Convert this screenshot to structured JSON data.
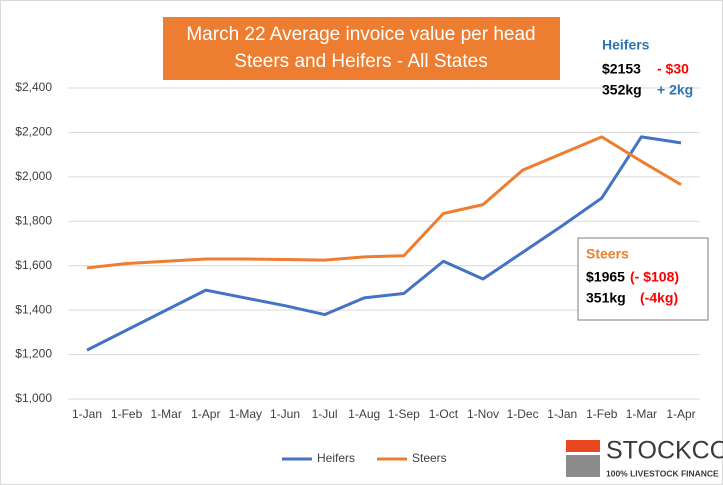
{
  "chart_data": {
    "type": "line",
    "title": "March 22 Average invoice value per head",
    "subtitle": "Steers and Heifers - All States",
    "categories": [
      "1-Jan",
      "1-Feb",
      "1-Mar",
      "1-Apr",
      "1-May",
      "1-Jun",
      "1-Jul",
      "1-Aug",
      "1-Sep",
      "1-Oct",
      "1-Nov",
      "1-Dec",
      "1-Jan",
      "1-Feb",
      "1-Mar",
      "1-Apr"
    ],
    "series": [
      {
        "name": "Heifers",
        "color": "#4472c4",
        "values": [
          1220,
          1310,
          1400,
          1490,
          1455,
          1420,
          1380,
          1455,
          1475,
          1620,
          1540,
          1660,
          1780,
          1905,
          2180,
          2153
        ]
      },
      {
        "name": "Steers",
        "color": "#ed7d31",
        "values": [
          1590,
          1610,
          1620,
          1630,
          1630,
          1628,
          1625,
          1640,
          1645,
          1835,
          1875,
          2030,
          2105,
          2180,
          2070,
          1965
        ]
      }
    ],
    "ylim": [
      1000,
      2400
    ],
    "yticks": [
      {
        "value": 1000,
        "label": "$1,000"
      },
      {
        "value": 1200,
        "label": "$1,200"
      },
      {
        "value": 1400,
        "label": "$1,400"
      },
      {
        "value": 1600,
        "label": "$1,600"
      },
      {
        "value": 1800,
        "label": "$1,800"
      },
      {
        "value": 2000,
        "label": "$2,000"
      },
      {
        "value": 2200,
        "label": "$2,200"
      },
      {
        "value": 2400,
        "label": "$2,400"
      }
    ],
    "grid": true,
    "legend": "bottom",
    "annotations": {
      "heifers": {
        "label": "Heifers",
        "price": "$2153",
        "price_change": "- $30",
        "weight": "352kg",
        "weight_change": "+ 2kg"
      },
      "steers": {
        "label": "Steers",
        "price": "$1965",
        "price_change": "(- $108)",
        "weight": "351kg",
        "weight_change": "(-4kg)"
      }
    },
    "logo": {
      "name": "STOCKCO",
      "tagline": "100% LIVESTOCK FINANCE"
    }
  }
}
